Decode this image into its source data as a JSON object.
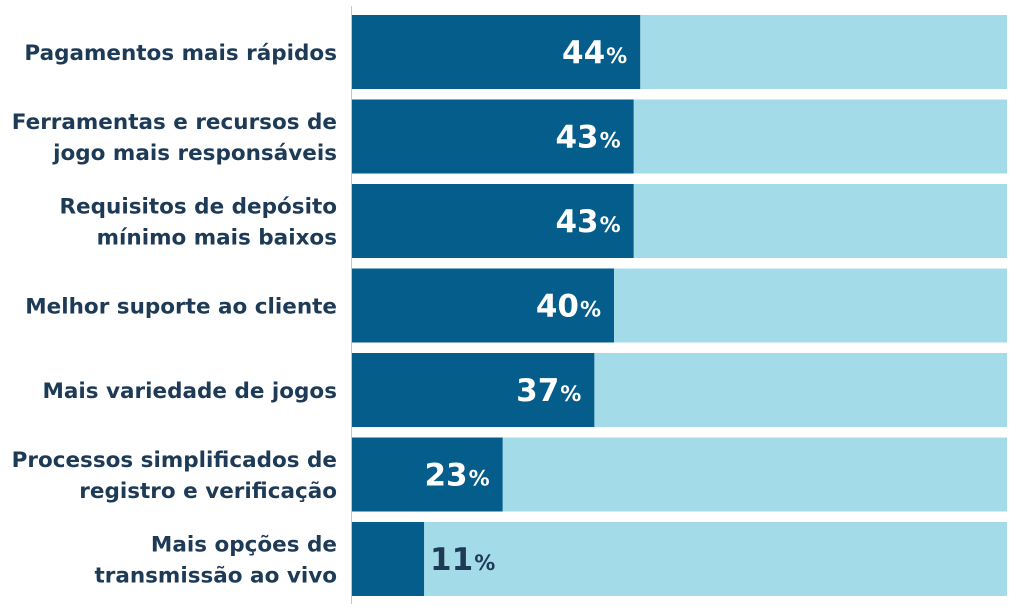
{
  "chart_data": {
    "type": "bar",
    "orientation": "horizontal",
    "stacked_to_total": true,
    "categories": [
      [
        "Pagamentos mais rápidos"
      ],
      [
        "Ferramentas e recursos de",
        "jogo mais responsáveis"
      ],
      [
        "Requisitos de depósito",
        "mínimo mais baixos"
      ],
      [
        "Melhor suporte ao cliente"
      ],
      [
        "Mais variedade de jogos"
      ],
      [
        "Processos simplificados de",
        "registro e verificação"
      ],
      [
        "Mais opções de",
        "transmissão ao vivo"
      ]
    ],
    "values": [
      44,
      43,
      43,
      40,
      37,
      23,
      11
    ],
    "value_suffix": "%",
    "xlim": [
      0,
      100
    ],
    "title": "",
    "xlabel": "",
    "ylabel": "",
    "grid": false,
    "legend": "none",
    "colors": {
      "value_bar": "#045d8a",
      "remainder_bar": "#a4dbe8",
      "label_text": "#1d3a56",
      "value_text_inside": "#ffffff",
      "value_text_outside": "#1d3a56",
      "axis_line": "#c8c8c8"
    }
  }
}
